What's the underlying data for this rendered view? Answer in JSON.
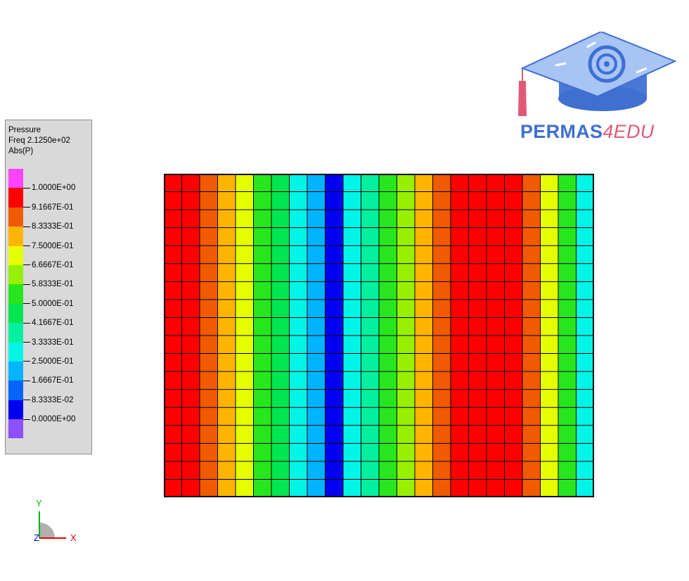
{
  "legend": {
    "title_line1": "Pressure",
    "title_line2": "Freq 2.1250e+02",
    "title_line3": "Abs(P)",
    "swatch_colors": [
      "#ff44ff",
      "#ff0000",
      "#f05a00",
      "#ffb400",
      "#e6ff00",
      "#96f000",
      "#28e61e",
      "#00e650",
      "#00f0a0",
      "#00f5e6",
      "#00b4ff",
      "#0064ff",
      "#0000f0",
      "#8c50ff"
    ],
    "values": [
      "1.0000E+00",
      "9.1667E-01",
      "8.3333E-01",
      "7.5000E-01",
      "6.6667E-01",
      "5.8333E-01",
      "5.0000E-01",
      "4.1667E-01",
      "3.3333E-01",
      "2.5000E-01",
      "1.6667E-01",
      "8.3333E-02",
      "0.0000E+00"
    ]
  },
  "logo": {
    "text_main": "PERMAS",
    "text_accent": "4EDU",
    "primary_color": "#3f6fd1",
    "accent_color": "#e05a78"
  },
  "plot": {
    "columns": 24,
    "rows": 18,
    "column_levels": [
      0.97,
      0.97,
      0.86,
      0.78,
      0.7,
      0.56,
      0.46,
      0.33,
      0.22,
      0.08,
      0.28,
      0.4,
      0.52,
      0.62,
      0.76,
      0.86,
      0.97,
      0.97,
      0.97,
      0.97,
      0.86,
      0.7,
      0.5,
      0.3
    ],
    "color_scale": [
      "#0000f0",
      "#0064ff",
      "#00b4ff",
      "#00f5e6",
      "#00f0a0",
      "#00e650",
      "#28e61e",
      "#96f000",
      "#e6ff00",
      "#ffb400",
      "#f05a00",
      "#ff0000"
    ]
  },
  "axes": {
    "y_label": "Y",
    "z_label": "Z",
    "x_label": "X",
    "y_color": "#00b400",
    "x_color": "#e60000",
    "z_color": "#0000e6"
  }
}
